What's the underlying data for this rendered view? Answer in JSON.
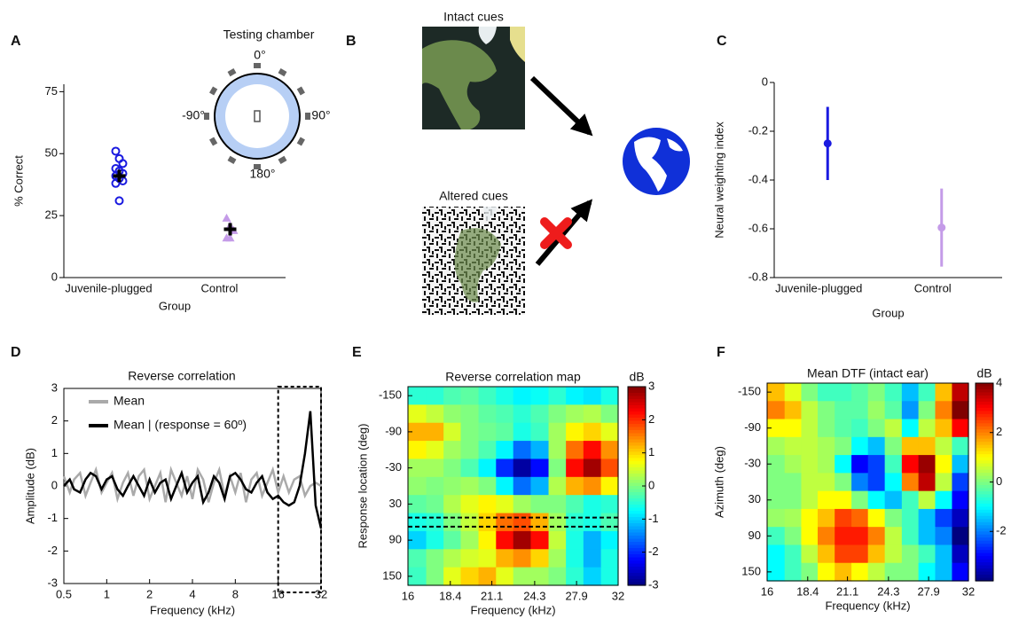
{
  "panel_b": {
    "panel": "B",
    "intact_title": "Intact cues",
    "altered_title": "Altered cues"
  },
  "chart_data": [
    {
      "type": "strip",
      "panel": "A",
      "ylabel": "% Correct",
      "xlabel": "Group",
      "categories": [
        "Juvenile-plugged",
        "Control"
      ],
      "ylim": [
        0,
        78
      ],
      "yticks": [
        0,
        25,
        50,
        75
      ],
      "groups": [
        {
          "color": "#1a1ae0",
          "marker": "circle",
          "values": [
            51,
            48,
            46,
            44,
            43,
            42,
            41,
            40,
            39,
            38,
            31
          ],
          "mean": 41,
          "error": 2.5
        },
        {
          "color": "#c49be8",
          "marker": "triangle",
          "values": [
            24,
            21,
            19,
            16,
            16
          ],
          "mean": 19.5,
          "error": 2.5
        }
      ],
      "mean_color": "#000000",
      "inset": {
        "title": "Testing chamber",
        "angle_labels": [
          "0°",
          "-90°",
          "90°",
          "180°"
        ]
      }
    },
    {
      "type": "errorbar",
      "panel": "C",
      "ylabel": "Neural weighting index",
      "xlabel": "Group",
      "categories": [
        "Juvenile-plugged",
        "Control"
      ],
      "values": [
        -0.25,
        -0.595
      ],
      "errors": [
        0.15,
        0.16
      ],
      "colors": [
        "#1a1ae0",
        "#c49be8"
      ],
      "ylim": [
        -0.8,
        0
      ],
      "yticks": [
        0,
        -0.2,
        -0.4,
        -0.6,
        -0.8
      ]
    },
    {
      "type": "line",
      "panel": "D",
      "title": "Reverse correlation",
      "xlabel": "Frequency (kHz)",
      "ylabel": "Amplitude (dB)",
      "xscale": "log",
      "xlim": [
        0.5,
        32
      ],
      "xticks": [
        0.5,
        1,
        2,
        4,
        8,
        16,
        32
      ],
      "ylim": [
        -3,
        3
      ],
      "yticks": [
        -3,
        -2,
        -1,
        0,
        1,
        2,
        3
      ],
      "highlight_xlim": [
        16,
        32
      ],
      "x": [
        0.5,
        0.55,
        0.59,
        0.65,
        0.71,
        0.77,
        0.84,
        0.92,
        1,
        1.09,
        1.19,
        1.3,
        1.41,
        1.54,
        1.68,
        1.83,
        2,
        2.18,
        2.38,
        2.59,
        2.83,
        3.08,
        3.36,
        3.67,
        4,
        4.36,
        4.76,
        5.19,
        5.66,
        6.17,
        6.73,
        7.34,
        8,
        8.72,
        9.51,
        10.37,
        11.31,
        12.34,
        13.45,
        14.67,
        16,
        17.45,
        19.03,
        20.75,
        22.63,
        24.68,
        26.91,
        29.34,
        32
      ],
      "series": [
        {
          "name": "Mean",
          "color": "#aaaaaa",
          "values": [
            0.3,
            -0.2,
            0.2,
            0.4,
            -0.3,
            0.1,
            0.5,
            -0.2,
            0.1,
            0.4,
            -0.4,
            0.1,
            0.4,
            -0.3,
            0.3,
            0.5,
            -0.4,
            0,
            0.4,
            -0.5,
            0.5,
            0.1,
            -0.3,
            0.3,
            -0.4,
            0.5,
            0.2,
            -0.5,
            0.1,
            0.5,
            -0.3,
            0.3,
            -0.2,
            0.4,
            -0.5,
            0.2,
            0.4,
            -0.3,
            0.1,
            0.5,
            -0.2,
            0.3,
            -0.2,
            0.2,
            0.3,
            -0.3,
            0,
            0.1,
            0
          ]
        },
        {
          "name": "Mean | (response = 60º)",
          "color": "#000000",
          "values": [
            0,
            0.2,
            -0.1,
            -0.2,
            0.2,
            0.4,
            0.3,
            -0.1,
            0.2,
            0.3,
            -0.1,
            -0.3,
            0,
            0.3,
            0,
            -0.3,
            0.2,
            -0.2,
            0.1,
            0.2,
            -0.4,
            0,
            0.4,
            -0.2,
            0.1,
            0.3,
            -0.5,
            -0.2,
            0.3,
            0.1,
            -0.4,
            0.3,
            0.4,
            0.2,
            -0.1,
            -0.2,
            0.1,
            0.3,
            -0.2,
            -0.4,
            -0.3,
            -0.5,
            -0.6,
            -0.5,
            0,
            1.0,
            2.3,
            -0.6,
            -1.3
          ]
        }
      ]
    },
    {
      "type": "heatmap",
      "panel": "E",
      "title": "Reverse correlation map",
      "xlabel": "Frequency (kHz)",
      "ylabel": "Response location (deg)",
      "colorbar_label": "dB",
      "colormap": "jet",
      "xscale": "log",
      "yreverse": true,
      "xlim": [
        16,
        32
      ],
      "xticks": [
        16,
        18.4,
        21.1,
        24.3,
        27.9,
        32
      ],
      "ylim": [
        -165,
        165
      ],
      "yticks": [
        -150,
        -90,
        -30,
        30,
        90,
        150
      ],
      "clim": [
        -3,
        3
      ],
      "cticks": [
        -3,
        -2,
        -1,
        0,
        1,
        2,
        3
      ],
      "highlight_ylim": [
        52.5,
        67.5
      ],
      "x": [
        16.5,
        17.5,
        18.5,
        19.6,
        20.8,
        22.0,
        23.3,
        24.7,
        26.2,
        27.7,
        29.4,
        31.1
      ],
      "y": [
        -150,
        -120,
        -90,
        -60,
        -30,
        0,
        30,
        60,
        90,
        120,
        150
      ],
      "z": [
        [
          -0.5,
          -0.5,
          -0.3,
          -0.2,
          -0.4,
          -0.6,
          -0.8,
          -0.7,
          -0.5,
          -0.8,
          -0.9,
          -0.6
        ],
        [
          0.6,
          0.4,
          0.1,
          0,
          -0.2,
          -0.3,
          -0.5,
          -0.3,
          0,
          0.2,
          0.3,
          0
        ],
        [
          1.2,
          1.2,
          0.5,
          0,
          -0.1,
          -0.2,
          -0.6,
          -0.4,
          0.2,
          0.8,
          1.0,
          0.6
        ],
        [
          0.8,
          0.6,
          0.2,
          0,
          -0.3,
          -0.8,
          -1.6,
          -1.2,
          0.2,
          1.6,
          2.2,
          1.4
        ],
        [
          0.2,
          0.2,
          0,
          -0.3,
          -0.8,
          -2.0,
          -2.8,
          -2.2,
          0,
          2.2,
          2.8,
          1.8
        ],
        [
          0.1,
          0,
          0.1,
          0.2,
          0,
          -0.8,
          -1.6,
          -1.2,
          0.3,
          1.2,
          1.4,
          0.8
        ],
        [
          -0.2,
          -0.1,
          0.3,
          0.6,
          0.8,
          0.6,
          0.2,
          0,
          0,
          -0.3,
          -0.6,
          -0.5
        ],
        [
          -0.6,
          -0.5,
          0,
          0.4,
          1.0,
          1.6,
          1.8,
          1.2,
          0.2,
          -0.5,
          -0.6,
          -0.3
        ],
        [
          -1.0,
          -0.6,
          -0.2,
          0.2,
          0.8,
          2.2,
          2.8,
          2.2,
          0.4,
          -0.6,
          -1.2,
          -0.8
        ],
        [
          -0.3,
          0,
          0.3,
          0.5,
          0.6,
          1.2,
          1.4,
          1.0,
          0.2,
          -0.6,
          -1.2,
          -0.6
        ],
        [
          -0.4,
          0,
          0.6,
          1.0,
          1.2,
          0.6,
          0.2,
          0.2,
          0,
          -0.5,
          -1.0,
          -0.6
        ]
      ]
    },
    {
      "type": "heatmap",
      "panel": "F",
      "title": "Mean DTF (intact ear)",
      "xlabel": "Frequency (kHz)",
      "ylabel": "Azimuth (deg)",
      "colorbar_label": "dB",
      "colormap": "jet",
      "xscale": "log",
      "yreverse": true,
      "xlim": [
        16,
        32
      ],
      "xticks": [
        16,
        18.4,
        21.1,
        24.3,
        27.9,
        32
      ],
      "ylim": [
        -165,
        165
      ],
      "yticks": [
        -150,
        -90,
        -30,
        30,
        90,
        150
      ],
      "clim": [
        -4,
        4
      ],
      "cticks": [
        -2,
        0,
        2,
        4
      ],
      "x": [
        16.5,
        17.5,
        18.5,
        19.6,
        20.8,
        22.0,
        23.3,
        24.7,
        26.2,
        27.7,
        29.4,
        31.1
      ],
      "y": [
        -150,
        -120,
        -90,
        -60,
        -30,
        0,
        30,
        60,
        90,
        120,
        150
      ],
      "z": [
        [
          1.5,
          0.8,
          0,
          -0.5,
          -0.5,
          -0.3,
          0,
          -0.5,
          -1.5,
          -0.5,
          1.5,
          3.5
        ],
        [
          2.0,
          1.5,
          0.5,
          0,
          -0.3,
          -0.3,
          0.2,
          -0.3,
          -1.8,
          0,
          2.0,
          4.0
        ],
        [
          1.0,
          1.0,
          0.5,
          0,
          -0.3,
          -0.5,
          0,
          0.5,
          -1.0,
          0.5,
          1.5,
          3.0
        ],
        [
          0.3,
          0.5,
          0.5,
          0.3,
          0,
          -1.0,
          -1.5,
          0,
          1.5,
          1.5,
          0.5,
          -0.5
        ],
        [
          0,
          0.3,
          0.5,
          0.3,
          -1.0,
          -3.0,
          -2.5,
          -0.5,
          3.0,
          3.8,
          1.0,
          -1.5
        ],
        [
          0,
          0,
          0.5,
          0.5,
          0,
          -2.0,
          -2.5,
          -1.0,
          2.0,
          3.5,
          0.5,
          -2.5
        ],
        [
          0,
          0,
          0.5,
          1.0,
          1.0,
          0,
          -1.0,
          -1.5,
          -0.5,
          0.5,
          -1.0,
          -3.0
        ],
        [
          0.2,
          0.3,
          1.0,
          1.5,
          2.5,
          2.2,
          1.0,
          0,
          -0.5,
          -1.5,
          -2.5,
          -3.5
        ],
        [
          -0.5,
          0,
          1.0,
          2.0,
          2.8,
          2.8,
          2.0,
          0.5,
          -0.5,
          -1.5,
          -2.0,
          -4.0
        ],
        [
          -1.0,
          -0.5,
          0.5,
          1.5,
          2.5,
          2.5,
          1.5,
          0.5,
          0,
          -0.5,
          -1.5,
          -3.5
        ],
        [
          -1.0,
          -0.5,
          0,
          1.0,
          1.5,
          1.0,
          0.5,
          0,
          0,
          -1.0,
          -1.5,
          -3.0
        ]
      ]
    }
  ]
}
